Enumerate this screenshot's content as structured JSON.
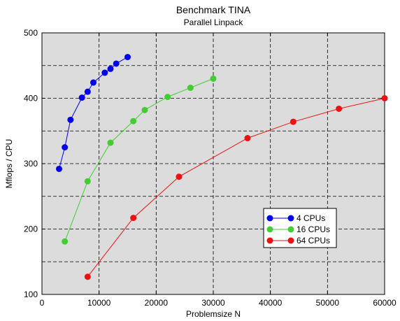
{
  "chart_data": {
    "type": "line",
    "title": "Benchmark TINA",
    "subtitle": "Parallel Linpack",
    "xlabel": "Problemsize N",
    "ylabel": "Mflops / CPU",
    "xlim": [
      0,
      60000
    ],
    "ylim": [
      100,
      500
    ],
    "xticks": [
      0,
      10000,
      20000,
      30000,
      40000,
      50000,
      60000
    ],
    "yticks": [
      100,
      200,
      300,
      400,
      500
    ],
    "grid": true,
    "legend_position": "bottom-right",
    "background": "#dcdcdc",
    "series": [
      {
        "name": "4 CPUs",
        "color": "#0000ee",
        "x": [
          3000,
          4000,
          5000,
          7000,
          8000,
          9000,
          11000,
          12000,
          13000,
          15000
        ],
        "y": [
          292,
          325,
          367,
          401,
          410,
          424,
          439,
          445,
          453,
          463
        ]
      },
      {
        "name": "16 CPUs",
        "color": "#44cc33",
        "x": [
          4000,
          8000,
          12000,
          16000,
          18000,
          22000,
          26000,
          30000
        ],
        "y": [
          181,
          273,
          332,
          365,
          382,
          402,
          416,
          430
        ]
      },
      {
        "name": "64 CPUs",
        "color": "#ee1111",
        "x": [
          8000,
          16000,
          24000,
          36000,
          44000,
          52000,
          60000
        ],
        "y": [
          127,
          217,
          280,
          339,
          364,
          384,
          400
        ]
      }
    ]
  }
}
